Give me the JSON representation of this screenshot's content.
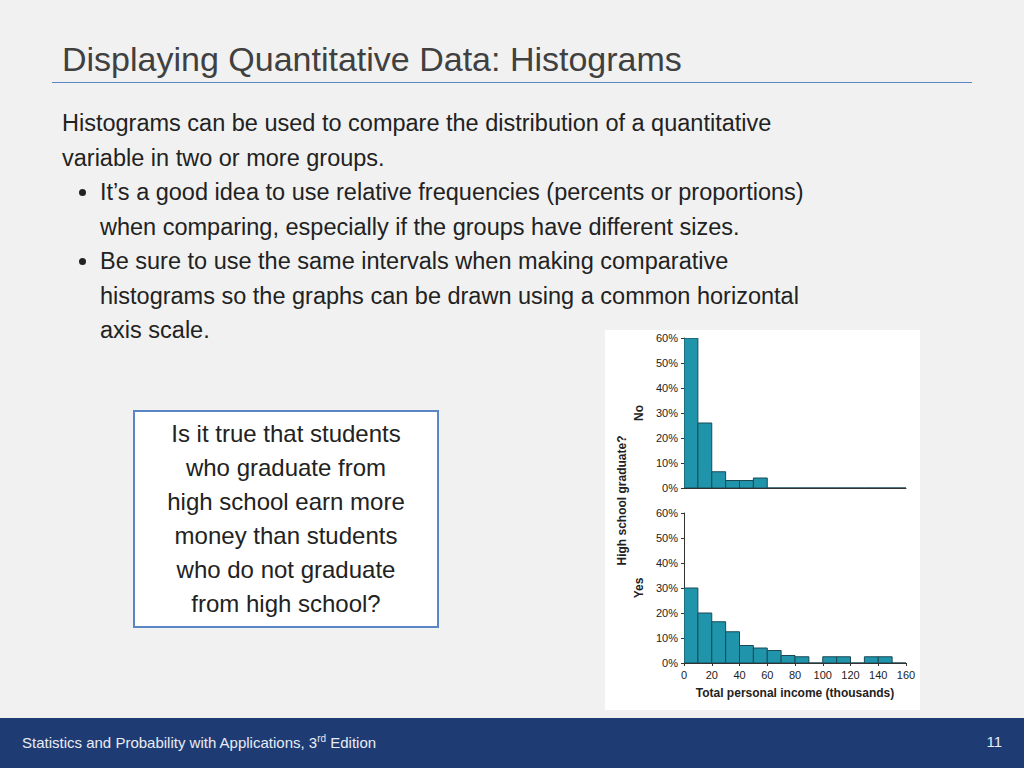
{
  "title": "Displaying Quantitative Data: Histograms",
  "intro": [
    "Histograms can be used to compare the distribution of a quantitative",
    "variable in two or more groups."
  ],
  "bullets": [
    [
      "It’s a good idea to use relative frequencies (percents or proportions)",
      "when comparing, especially if the groups have different sizes."
    ],
    [
      "Be sure to use the same intervals when making comparative",
      "histograms so the graphs can be drawn using a common horizontal",
      "axis scale."
    ]
  ],
  "question": [
    "Is it true that students",
    "who graduate from",
    "high school earn more",
    "money than students",
    "who do not graduate",
    "from high school?"
  ],
  "chart_ylabel": "High school graduate?",
  "chart_data": [
    {
      "type": "histogram",
      "ylabel": "No",
      "bins": [
        0,
        10,
        20,
        30,
        40,
        50,
        60,
        70,
        80,
        90,
        100,
        110,
        120,
        130,
        140,
        150,
        160
      ],
      "values": [
        60,
        26,
        6.5,
        3,
        3,
        4,
        0,
        0,
        0,
        0,
        0,
        0,
        0,
        0,
        0,
        0
      ],
      "color": "#1f94aa",
      "xlim": [
        0,
        160
      ],
      "xticks": [
        0,
        20,
        40,
        60,
        80,
        100,
        120,
        140,
        160
      ],
      "ylim": [
        0,
        60
      ],
      "yticks": [
        {
          "value": 0,
          "label": "0%"
        },
        {
          "value": 10,
          "label": "10%"
        },
        {
          "value": 20,
          "label": "20%"
        },
        {
          "value": 30,
          "label": "30%"
        },
        {
          "value": 40,
          "label": "40%"
        },
        {
          "value": 50,
          "label": "50%"
        },
        {
          "value": 60,
          "label": "60%"
        }
      ],
      "tick_labels": "y"
    },
    {
      "type": "histogram",
      "ylabel": "Yes",
      "xlabel": "Total personal income (thousands)",
      "bins": [
        0,
        10,
        20,
        30,
        40,
        50,
        60,
        70,
        80,
        90,
        100,
        110,
        120,
        130,
        140,
        150,
        160
      ],
      "values": [
        30,
        20,
        16.5,
        12.5,
        7,
        6,
        5,
        3,
        2.5,
        0,
        2.5,
        2.5,
        0,
        2.5,
        2.5,
        0
      ],
      "color": "#1f94aa",
      "xlim": [
        0,
        160
      ],
      "xticks": [
        0,
        20,
        40,
        60,
        80,
        100,
        120,
        140,
        160
      ],
      "ylim": [
        0,
        60
      ],
      "yticks": [
        {
          "value": 0,
          "label": "0%"
        },
        {
          "value": 10,
          "label": "10%"
        },
        {
          "value": 20,
          "label": "20%"
        },
        {
          "value": 30,
          "label": "30%"
        },
        {
          "value": 40,
          "label": "40%"
        },
        {
          "value": 50,
          "label": "50%"
        },
        {
          "value": 60,
          "label": "60%"
        }
      ]
    }
  ],
  "footer": "Statistics and Probability with Applications, 3rd Edition",
  "page_number": 11
}
